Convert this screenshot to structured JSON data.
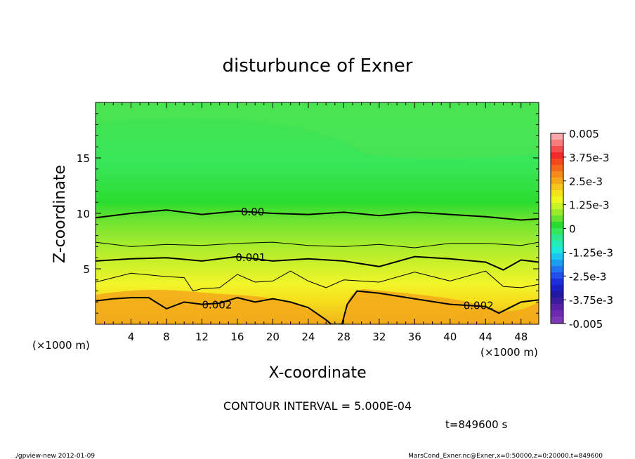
{
  "chart_data": {
    "type": "heatmap",
    "title": "disturbunce of Exner",
    "xlabel": "X-coordinate",
    "ylabel": "Z-coordinate",
    "x_unit_left": "(×1000 m)",
    "x_unit_right": "(×1000 m)",
    "xlim": [
      0,
      50
    ],
    "ylim": [
      0,
      20
    ],
    "x_ticks": [
      4,
      8,
      12,
      16,
      20,
      24,
      28,
      32,
      36,
      40,
      44,
      48
    ],
    "y_ticks": [
      5,
      10,
      15
    ],
    "colorbar": {
      "range": [
        -0.005,
        0.005
      ],
      "tick_labels": [
        "0.005",
        "3.75e-3",
        "2.5e-3",
        "1.25e-3",
        "0",
        "-1.25e-3",
        "-2.5e-3",
        "-3.75e-3",
        "-0.005"
      ]
    },
    "contours": [
      {
        "level": 0.0,
        "label": "0.00",
        "points": [
          [
            0,
            9.6
          ],
          [
            4,
            10.0
          ],
          [
            8,
            10.3
          ],
          [
            12,
            9.9
          ],
          [
            16,
            10.2
          ],
          [
            20,
            10.0
          ],
          [
            24,
            9.9
          ],
          [
            28,
            10.1
          ],
          [
            32,
            9.8
          ],
          [
            36,
            10.1
          ],
          [
            40,
            9.9
          ],
          [
            44,
            9.7
          ],
          [
            48,
            9.4
          ],
          [
            50,
            9.5
          ]
        ]
      },
      {
        "level": 0.0005,
        "label": "",
        "points": [
          [
            0,
            7.4
          ],
          [
            4,
            7.0
          ],
          [
            8,
            7.2
          ],
          [
            12,
            7.1
          ],
          [
            16,
            7.3
          ],
          [
            20,
            7.4
          ],
          [
            24,
            7.1
          ],
          [
            28,
            7.0
          ],
          [
            32,
            7.2
          ],
          [
            36,
            6.9
          ],
          [
            40,
            7.3
          ],
          [
            44,
            7.3
          ],
          [
            48,
            7.1
          ],
          [
            50,
            7.4
          ]
        ]
      },
      {
        "level": 0.001,
        "label": "0.001",
        "points": [
          [
            0,
            5.7
          ],
          [
            4,
            5.9
          ],
          [
            8,
            6.0
          ],
          [
            12,
            5.7
          ],
          [
            16,
            6.1
          ],
          [
            20,
            5.7
          ],
          [
            24,
            5.9
          ],
          [
            28,
            5.7
          ],
          [
            32,
            5.2
          ],
          [
            36,
            6.1
          ],
          [
            40,
            5.9
          ],
          [
            44,
            5.6
          ],
          [
            46,
            4.9
          ],
          [
            48,
            5.8
          ],
          [
            50,
            5.6
          ]
        ]
      },
      {
        "level": 0.0015,
        "label": "",
        "points": [
          [
            0,
            3.8
          ],
          [
            4,
            4.6
          ],
          [
            8,
            4.3
          ],
          [
            10,
            4.2
          ],
          [
            11,
            3.0
          ],
          [
            12,
            3.2
          ],
          [
            14,
            3.3
          ],
          [
            16,
            4.5
          ],
          [
            18,
            3.8
          ],
          [
            20,
            3.9
          ],
          [
            22,
            4.8
          ],
          [
            24,
            3.9
          ],
          [
            26,
            3.3
          ],
          [
            28,
            4.0
          ],
          [
            32,
            3.8
          ],
          [
            36,
            4.7
          ],
          [
            40,
            3.9
          ],
          [
            44,
            4.8
          ],
          [
            46,
            3.4
          ],
          [
            48,
            3.3
          ],
          [
            50,
            3.6
          ]
        ]
      },
      {
        "level": 0.002,
        "label": "0.002",
        "points": [
          [
            0,
            2.1
          ],
          [
            2,
            2.3
          ],
          [
            4,
            2.4
          ],
          [
            6,
            2.4
          ],
          [
            8,
            1.4
          ],
          [
            10,
            2.0
          ],
          [
            12,
            1.8
          ],
          [
            14,
            1.9
          ],
          [
            16,
            2.4
          ],
          [
            18,
            2.0
          ],
          [
            20,
            2.3
          ],
          [
            22,
            2.0
          ],
          [
            24,
            1.5
          ],
          [
            26,
            0.4
          ],
          [
            26.6,
            0
          ],
          [
            27.8,
            0
          ],
          [
            28.4,
            1.8
          ],
          [
            29.5,
            3.0
          ],
          [
            32,
            2.8
          ],
          [
            36,
            2.3
          ],
          [
            40,
            1.8
          ],
          [
            44,
            1.6
          ],
          [
            45.5,
            1.0
          ],
          [
            47,
            1.6
          ],
          [
            48,
            2.0
          ],
          [
            50,
            2.2
          ]
        ]
      }
    ]
  },
  "contour_interval": "CONTOUR INTERVAL = 5.000E-04",
  "time_label": "t=849600 s",
  "footer_left": "./gpview-new   2012-01-09",
  "footer_right": "MarsCond_Exner.nc@Exner,x=0:50000,z=0:20000,t=849600"
}
